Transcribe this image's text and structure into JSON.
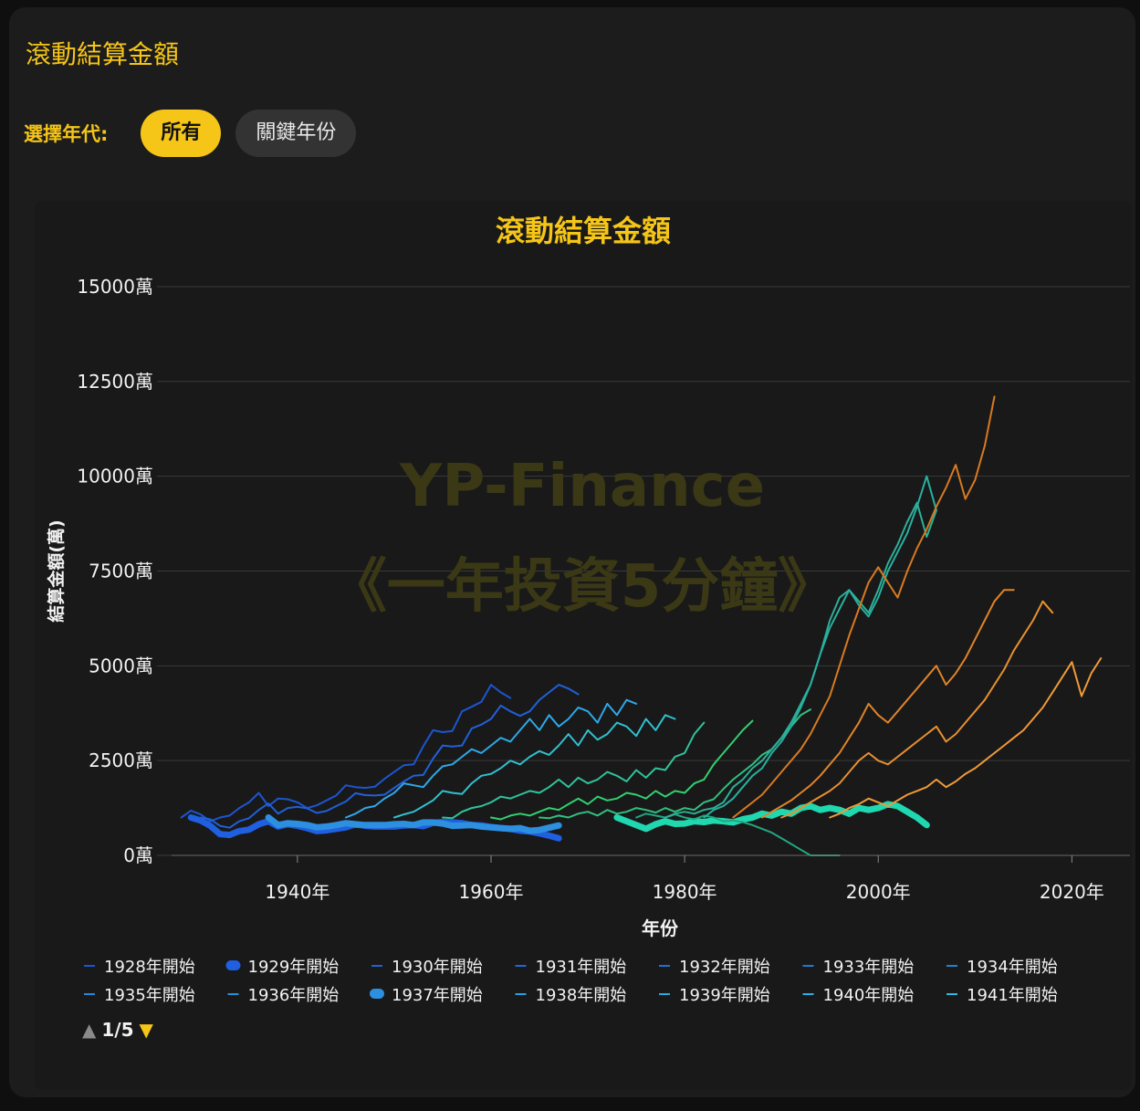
{
  "header": {
    "title": "滾動結算金額"
  },
  "era_selector": {
    "label": "選擇年代:",
    "options": [
      {
        "label": "所有",
        "active": true
      },
      {
        "label": "關鍵年份",
        "active": false
      }
    ]
  },
  "colors": {
    "accent": "#f5c518",
    "background": "#1c1c1c",
    "text": "#f2f2f2"
  },
  "chart_data": {
    "type": "line",
    "title": "滾動結算金額",
    "xlabel": "年份",
    "ylabel": "結算金額(萬)",
    "xlim": [
      1927,
      2026
    ],
    "ylim": [
      0,
      15000
    ],
    "x_ticks": [
      1940,
      1960,
      1980,
      2000,
      2020
    ],
    "x_tick_labels": [
      "1940年",
      "1960年",
      "1980年",
      "2000年",
      "2020年"
    ],
    "y_ticks": [
      0,
      2500,
      5000,
      7500,
      10000,
      12500,
      15000
    ],
    "y_tick_labels": [
      "0萬",
      "2500萬",
      "5000萬",
      "7500萬",
      "10000萬",
      "12500萬",
      "15000萬"
    ],
    "grid": true,
    "legend_position": "bottom",
    "watermark": [
      "YP-Finance",
      "《一年投資5分鐘》"
    ],
    "legend_page": "1/5",
    "series": [
      {
        "name": "1928年開始",
        "start": 1928,
        "color": "#1d55d0",
        "values": [
          1000,
          1180,
          1080,
          900,
          1000,
          1050,
          1250,
          1400,
          1650,
          1300,
          1500,
          1480,
          1400,
          1250,
          1320,
          1450,
          1580,
          1850,
          1800,
          1780,
          1810,
          2020,
          2200,
          2380,
          2400,
          2880,
          3300,
          3250,
          3280,
          3800,
          3920,
          4050,
          4500,
          4300,
          4150
        ]
      },
      {
        "name": "1929年開始",
        "start": 1929,
        "color": "#1f5fe0",
        "highlight": true,
        "values": [
          1000,
          920,
          780,
          560,
          540,
          640,
          680,
          820,
          900,
          760,
          820,
          780,
          720,
          640,
          660,
          700,
          740,
          820,
          780,
          760,
          760,
          760,
          790,
          800,
          770,
          860,
          880,
          870,
          850,
          800,
          790,
          750,
          720,
          700,
          650,
          630,
          580,
          520,
          450
        ]
      },
      {
        "name": "1930年開始",
        "start": 1930,
        "color": "#2060d8",
        "values": [
          1000,
          950,
          780,
          730,
          900,
          980,
          1200,
          1370,
          1100,
          1250,
          1280,
          1240,
          1120,
          1170,
          1300,
          1420,
          1640,
          1590,
          1580,
          1600,
          1780,
          1950,
          2100,
          2120,
          2550,
          2900,
          2870,
          2900,
          3350,
          3450,
          3600,
          3950,
          3800,
          3680,
          3800,
          4100,
          4300,
          4500,
          4400,
          4250
        ]
      },
      {
        "name": "1937年開始",
        "start": 1937,
        "color": "#2c8fe0",
        "highlight": true,
        "values": [
          1000,
          800,
          850,
          830,
          800,
          740,
          760,
          800,
          850,
          820,
          800,
          800,
          800,
          820,
          830,
          800,
          870,
          870,
          840,
          780,
          790,
          800,
          760,
          740,
          720,
          700,
          720,
          650,
          670,
          730,
          790
        ]
      },
      {
        "name": "",
        "start": 1945,
        "color": "#2ea8e8",
        "values": [
          1000,
          1100,
          1250,
          1300,
          1500,
          1650,
          1900,
          1850,
          1800,
          2100,
          2350,
          2400,
          2600,
          2800,
          2700,
          2900,
          3100,
          3000,
          3300,
          3600,
          3300,
          3700,
          3400,
          3600,
          3900,
          3800,
          3500,
          4000,
          3700,
          4100,
          4000
        ]
      },
      {
        "name": "",
        "start": 1950,
        "color": "#30c0d0",
        "values": [
          1000,
          1080,
          1150,
          1300,
          1450,
          1700,
          1650,
          1620,
          1900,
          2100,
          2150,
          2300,
          2500,
          2400,
          2600,
          2750,
          2650,
          2900,
          3200,
          2900,
          3300,
          3050,
          3200,
          3500,
          3400,
          3150,
          3600,
          3300,
          3700,
          3600
        ]
      },
      {
        "name": "",
        "start": 1955,
        "color": "#2ec49a",
        "values": [
          1000,
          980,
          1150,
          1250,
          1300,
          1400,
          1550,
          1500,
          1600,
          1700,
          1650,
          1800,
          2000,
          1800,
          2050,
          1900,
          2000,
          2200,
          2100,
          1950,
          2250,
          2050,
          2300,
          2250,
          2600,
          2700,
          3200,
          3500
        ]
      },
      {
        "name": "",
        "start": 1960,
        "color": "#30d070",
        "values": [
          1000,
          950,
          1050,
          1100,
          1050,
          1150,
          1250,
          1200,
          1350,
          1500,
          1350,
          1550,
          1450,
          1500,
          1650,
          1600,
          1500,
          1700,
          1550,
          1700,
          1650,
          1900,
          2000,
          2400,
          2700,
          3000,
          3300,
          3550
        ]
      },
      {
        "name": "",
        "start": 1965,
        "color": "#30c080",
        "values": [
          1000,
          980,
          1050,
          1000,
          1100,
          1150,
          1050,
          1200,
          1100,
          1150,
          1250,
          1200,
          1130,
          1250,
          1150,
          1250,
          1200,
          1400,
          1480,
          1750,
          2000,
          2200,
          2400,
          2650,
          2800,
          3100,
          3400,
          3700,
          3850
        ]
      },
      {
        "name": "",
        "start": 1973,
        "color": "#20d8b0",
        "highlight": true,
        "values": [
          1000,
          900,
          800,
          700,
          820,
          900,
          830,
          840,
          900,
          880,
          920,
          900,
          870,
          950,
          1000,
          1100,
          1050,
          1150,
          1100,
          1250,
          1300,
          1200,
          1250,
          1200,
          1100,
          1250,
          1200,
          1250,
          1350,
          1300,
          1150,
          1000,
          800
        ]
      },
      {
        "name": "",
        "start": 1975,
        "color": "#20a880",
        "values": [
          1000,
          1100,
          1050,
          1000,
          1080,
          1000,
          950,
          1050,
          1000,
          900,
          920,
          880,
          800,
          700,
          600,
          450,
          300,
          150,
          0,
          0,
          0,
          0
        ]
      },
      {
        "name": "",
        "start": 1978,
        "color": "#2cb098",
        "values": [
          1000,
          1100,
          1150,
          1100,
          1200,
          1250,
          1400,
          1800,
          2000,
          2300,
          2500,
          2800,
          3100,
          3500,
          4000,
          4500,
          5300,
          6200,
          6800,
          7000,
          6700,
          6400,
          7000,
          7700,
          8200,
          8800,
          9300,
          8400,
          9100
        ]
      },
      {
        "name": "",
        "start": 1982,
        "color": "#28b0a0",
        "values": [
          1000,
          1200,
          1300,
          1500,
          1800,
          2100,
          2300,
          2700,
          3000,
          3400,
          3900,
          4500,
          5300,
          6000,
          6500,
          7000,
          6600,
          6300,
          6800,
          7500,
          8000,
          8500,
          9200,
          10000,
          9100
        ]
      },
      {
        "name": "",
        "start": 1985,
        "color": "#d87a20",
        "values": [
          1000,
          1200,
          1400,
          1600,
          1900,
          2200,
          2500,
          2800,
          3200,
          3700,
          4200,
          5000,
          5800,
          6500,
          7200,
          7600,
          7200,
          6800,
          7500,
          8100,
          8600,
          9200,
          9700,
          10300,
          9400,
          9900,
          10800,
          12100
        ]
      },
      {
        "name": "",
        "start": 1988,
        "color": "#e08428",
        "values": [
          1000,
          1150,
          1300,
          1450,
          1650,
          1850,
          2100,
          2400,
          2700,
          3100,
          3500,
          4000,
          3700,
          3500,
          3800,
          4100,
          4400,
          4700,
          5000,
          4500,
          4800,
          5200,
          5700,
          6200,
          6700,
          7000,
          7000
        ]
      },
      {
        "name": "",
        "start": 1990,
        "color": "#e89030",
        "values": [
          1000,
          1100,
          1250,
          1400,
          1550,
          1700,
          1900,
          2200,
          2500,
          2700,
          2500,
          2400,
          2600,
          2800,
          3000,
          3200,
          3400,
          3000,
          3200,
          3500,
          3800,
          4100,
          4500,
          4900,
          5400,
          5800,
          6200,
          6700,
          6400
        ]
      },
      {
        "name": "",
        "start": 1995,
        "color": "#f09a38",
        "values": [
          1000,
          1100,
          1250,
          1350,
          1500,
          1400,
          1300,
          1450,
          1600,
          1700,
          1800,
          2000,
          1800,
          1950,
          2150,
          2300,
          2500,
          2700,
          2900,
          3100,
          3300,
          3600,
          3900,
          4300,
          4700,
          5100,
          4200,
          4800,
          5200
        ]
      }
    ],
    "legend": [
      {
        "label": "1928年開始",
        "color": "#1d55d0",
        "style": "line"
      },
      {
        "label": "1929年開始",
        "color": "#1f5fe0",
        "style": "dot"
      },
      {
        "label": "1930年開始",
        "color": "#2060d8",
        "style": "line"
      },
      {
        "label": "1931年開始",
        "color": "#2168d6",
        "style": "line"
      },
      {
        "label": "1932年開始",
        "color": "#2270d4",
        "style": "line"
      },
      {
        "label": "1933年開始",
        "color": "#2378d2",
        "style": "line"
      },
      {
        "label": "1934年開始",
        "color": "#2480d0",
        "style": "line"
      },
      {
        "label": "1935年開始",
        "color": "#2588d4",
        "style": "line"
      },
      {
        "label": "1936年開始",
        "color": "#2690d8",
        "style": "line"
      },
      {
        "label": "1937年開始",
        "color": "#2c8fe0",
        "style": "dot"
      },
      {
        "label": "1938年開始",
        "color": "#28a0e0",
        "style": "line"
      },
      {
        "label": "1939年開始",
        "color": "#29a8e2",
        "style": "line"
      },
      {
        "label": "1940年開始",
        "color": "#2ab0e4",
        "style": "line"
      },
      {
        "label": "1941年開始",
        "color": "#2bb8e6",
        "style": "line"
      }
    ]
  },
  "pager": {
    "up": "▲",
    "page": "1/5",
    "down": "▼"
  }
}
